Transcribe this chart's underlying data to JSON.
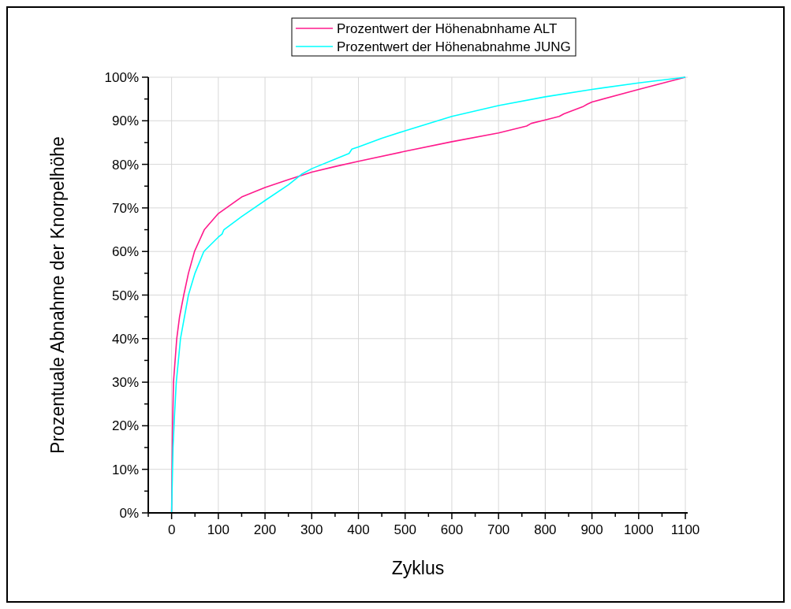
{
  "chart_data": {
    "type": "line",
    "xlabel": "Zyklus",
    "ylabel": "Prozentuale Abnahme der Knorpelhöhe",
    "xlim": [
      -50,
      1105
    ],
    "ylim": [
      0,
      100
    ],
    "xticks": [
      {
        "value": -50,
        "label": null
      },
      0,
      {
        "value": 50,
        "label": null
      },
      100,
      {
        "value": 150,
        "label": null
      },
      200,
      {
        "value": 250,
        "label": null
      },
      300,
      {
        "value": 350,
        "label": null
      },
      400,
      {
        "value": 450,
        "label": null
      },
      500,
      {
        "value": 550,
        "label": null
      },
      600,
      {
        "value": 650,
        "label": null
      },
      700,
      {
        "value": 750,
        "label": null
      },
      800,
      {
        "value": 850,
        "label": null
      },
      900,
      {
        "value": 950,
        "label": null
      },
      1000,
      {
        "value": 1050,
        "label": null
      },
      1100
    ],
    "yticks": [
      {
        "value": 0,
        "label": "0%"
      },
      {
        "value": 5,
        "label": null
      },
      {
        "value": 10,
        "label": "10%"
      },
      {
        "value": 15,
        "label": null
      },
      {
        "value": 20,
        "label": "20%"
      },
      {
        "value": 25,
        "label": null
      },
      {
        "value": 30,
        "label": "30%"
      },
      {
        "value": 35,
        "label": null
      },
      {
        "value": 40,
        "label": "40%"
      },
      {
        "value": 45,
        "label": null
      },
      {
        "value": 50,
        "label": "50%"
      },
      {
        "value": 55,
        "label": null
      },
      {
        "value": 60,
        "label": "60%"
      },
      {
        "value": 65,
        "label": null
      },
      {
        "value": 70,
        "label": "70%"
      },
      {
        "value": 75,
        "label": null
      },
      {
        "value": 80,
        "label": "80%"
      },
      {
        "value": 85,
        "label": null
      },
      {
        "value": 90,
        "label": "90%"
      },
      {
        "value": 95,
        "label": null
      },
      {
        "value": 100,
        "label": "100%"
      }
    ],
    "grid": true,
    "legend": "top",
    "line_style": "solid",
    "marker": "none",
    "series": [
      {
        "name": "Prozentwert der Höhenabnhame ALT",
        "color": "#ff1a8c",
        "x": [
          0,
          1,
          2,
          4,
          11,
          17,
          26,
          36,
          49,
          70,
          100,
          150,
          200,
          250,
          300,
          350,
          400,
          500,
          600,
          700,
          760,
          770,
          800,
          830,
          840,
          880,
          890,
          900,
          1000,
          1100
        ],
        "values": [
          0,
          10,
          20,
          30,
          40,
          45,
          50,
          55,
          60,
          65,
          68.7,
          72.5,
          74.7,
          76.5,
          78.2,
          79.5,
          80.7,
          83,
          85.2,
          87.2,
          88.8,
          89.4,
          90.2,
          91,
          91.6,
          93.2,
          93.8,
          94.3,
          97.2,
          100
        ]
      },
      {
        "name": "Prozentwert der Höhenabnahme JUNG",
        "color": "#00ffff",
        "x": [
          0,
          1,
          3,
          6,
          10,
          19,
          36,
          50,
          69,
          100,
          108,
          112,
          150,
          200,
          250,
          278,
          300,
          350,
          380,
          386,
          400,
          450,
          500,
          600,
          700,
          800,
          900,
          1000,
          1100
        ],
        "values": [
          0,
          5,
          15,
          22,
          30,
          40,
          50,
          55,
          60,
          63.3,
          64,
          65,
          68,
          71.7,
          75.3,
          77.7,
          79,
          81.2,
          82.5,
          83.5,
          84,
          86,
          87.7,
          91,
          93.5,
          95.5,
          97.2,
          98.7,
          100
        ]
      }
    ]
  }
}
